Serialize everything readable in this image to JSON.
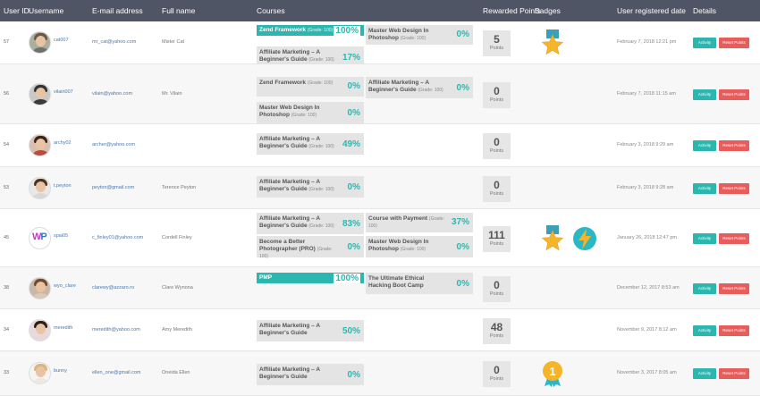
{
  "header": {
    "user_id": "User ID",
    "username": "Username",
    "email": "E-mail address",
    "full_name": "Full name",
    "courses": "Courses",
    "rewarded_points": "Rewarded Points",
    "badges": "Badges",
    "registered_date": "User registered date",
    "details": "Details"
  },
  "buttons": {
    "activity": "Activity",
    "reset": "Reset Points"
  },
  "points_label": "Points",
  "colors": {
    "header_bg": "#505565",
    "accent": "#2bb7b0",
    "danger": "#e85c5c"
  },
  "users": [
    {
      "id": "57",
      "username": "cat007",
      "email": "mr_cat@yahoo.com",
      "full_name": "Mister Cat",
      "points": "5",
      "date": "February 7, 2018 12:21 pm",
      "badges": [
        "ribbon-star-badge"
      ],
      "courses": [
        {
          "name": "Zend Framework",
          "grade": "(Grade: 100)",
          "pct": "100%",
          "progress": 1.0
        },
        {
          "name": "Master Web Design In Photoshop",
          "grade": "(Grade: 100)",
          "pct": "0%",
          "progress": 0
        },
        {
          "name": "Affiliate Marketing – A Beginner's Guide",
          "grade": "(Grade: 100)",
          "pct": "17%",
          "progress": 0.17
        }
      ]
    },
    {
      "id": "56",
      "username": "vilain007",
      "email": "vilain@yahoo.com",
      "full_name": "Mr. Vilain",
      "points": "0",
      "date": "February 7, 2018 11:15 am",
      "badges": [],
      "courses": [
        {
          "name": "Zend Framework",
          "grade": "(Grade: 100)",
          "pct": "0%",
          "progress": 0
        },
        {
          "name": "Affiliate Marketing – A Beginner's Guide",
          "grade": "(Grade: 100)",
          "pct": "0%",
          "progress": 0
        },
        {
          "name": "Master Web Design In Photoshop",
          "grade": "(Grade: 100)",
          "pct": "0%",
          "progress": 0
        }
      ]
    },
    {
      "id": "54",
      "username": "archy02",
      "email": "archer@yahoo.com",
      "full_name": "",
      "points": "0",
      "date": "February 3, 2018 9:29 am",
      "badges": [],
      "courses": [
        {
          "name": "Affiliate Marketing – A Beginner's Guide",
          "grade": "(Grade: 100)",
          "pct": "49%",
          "progress": 0.49
        }
      ]
    },
    {
      "id": "53",
      "username": "t.peyton",
      "email": "peyton@gmail.com",
      "full_name": "Terence Peyton",
      "points": "0",
      "date": "February 3, 2018 9:28 am",
      "badges": [],
      "courses": [
        {
          "name": "Affiliate Marketing – A Beginner's Guide",
          "grade": "(Grade: 100)",
          "pct": "0%",
          "progress": 0
        }
      ]
    },
    {
      "id": "45",
      "username": "spai05",
      "email": "c_finley01@yahoo.com",
      "full_name": "Cordell Finley",
      "points": "111",
      "date": "January 26, 2018 12:47 pm",
      "badges": [
        "ribbon-star-badge",
        "lightning-badge"
      ],
      "courses": [
        {
          "name": "Affiliate Marketing – A Beginner's Guide",
          "grade": "(Grade: 100)",
          "pct": "83%",
          "progress": 0.83
        },
        {
          "name": "Course with Payment",
          "grade": "(Grade: 100)",
          "pct": "37%",
          "progress": 0.37
        },
        {
          "name": "Become a Better Photographer (PRO)",
          "grade": "(Grade: 100)",
          "pct": "0%",
          "progress": 0
        },
        {
          "name": "Master Web Design In Photoshop",
          "grade": "(Grade: 100)",
          "pct": "0%",
          "progress": 0
        }
      ]
    },
    {
      "id": "38",
      "username": "wyo_clare",
      "email": "clarewy@azzaro.ro",
      "full_name": "Clare Wynona",
      "points": "0",
      "date": "December 12, 2017 8:53 am",
      "badges": [],
      "courses": [
        {
          "name": "PMP",
          "grade": "",
          "pct": "100%",
          "progress": 1.0
        },
        {
          "name": "The Ultimate Ethical Hacking Boot Camp",
          "grade": "",
          "pct": "0%",
          "progress": 0
        }
      ]
    },
    {
      "id": "34",
      "username": "meredith",
      "email": "meredith@yahoo.com",
      "full_name": "Amy Meredith",
      "points": "48",
      "date": "November 9, 2017 8:12 am",
      "badges": [],
      "courses": [
        {
          "name": "Affiliate Marketing – A Beginner's Guide",
          "grade": "",
          "pct": "50%",
          "progress": 0.5
        }
      ]
    },
    {
      "id": "33",
      "username": "bunny",
      "email": "ellen_one@gmail.com",
      "full_name": "Oneida Ellen",
      "points": "0",
      "date": "November 3, 2017 8:05 am",
      "badges": [
        "medal-1-badge"
      ],
      "courses": [
        {
          "name": "Affiliate Marketing – A Beginner's Guide",
          "grade": "",
          "pct": "0%",
          "progress": 0
        }
      ]
    }
  ]
}
